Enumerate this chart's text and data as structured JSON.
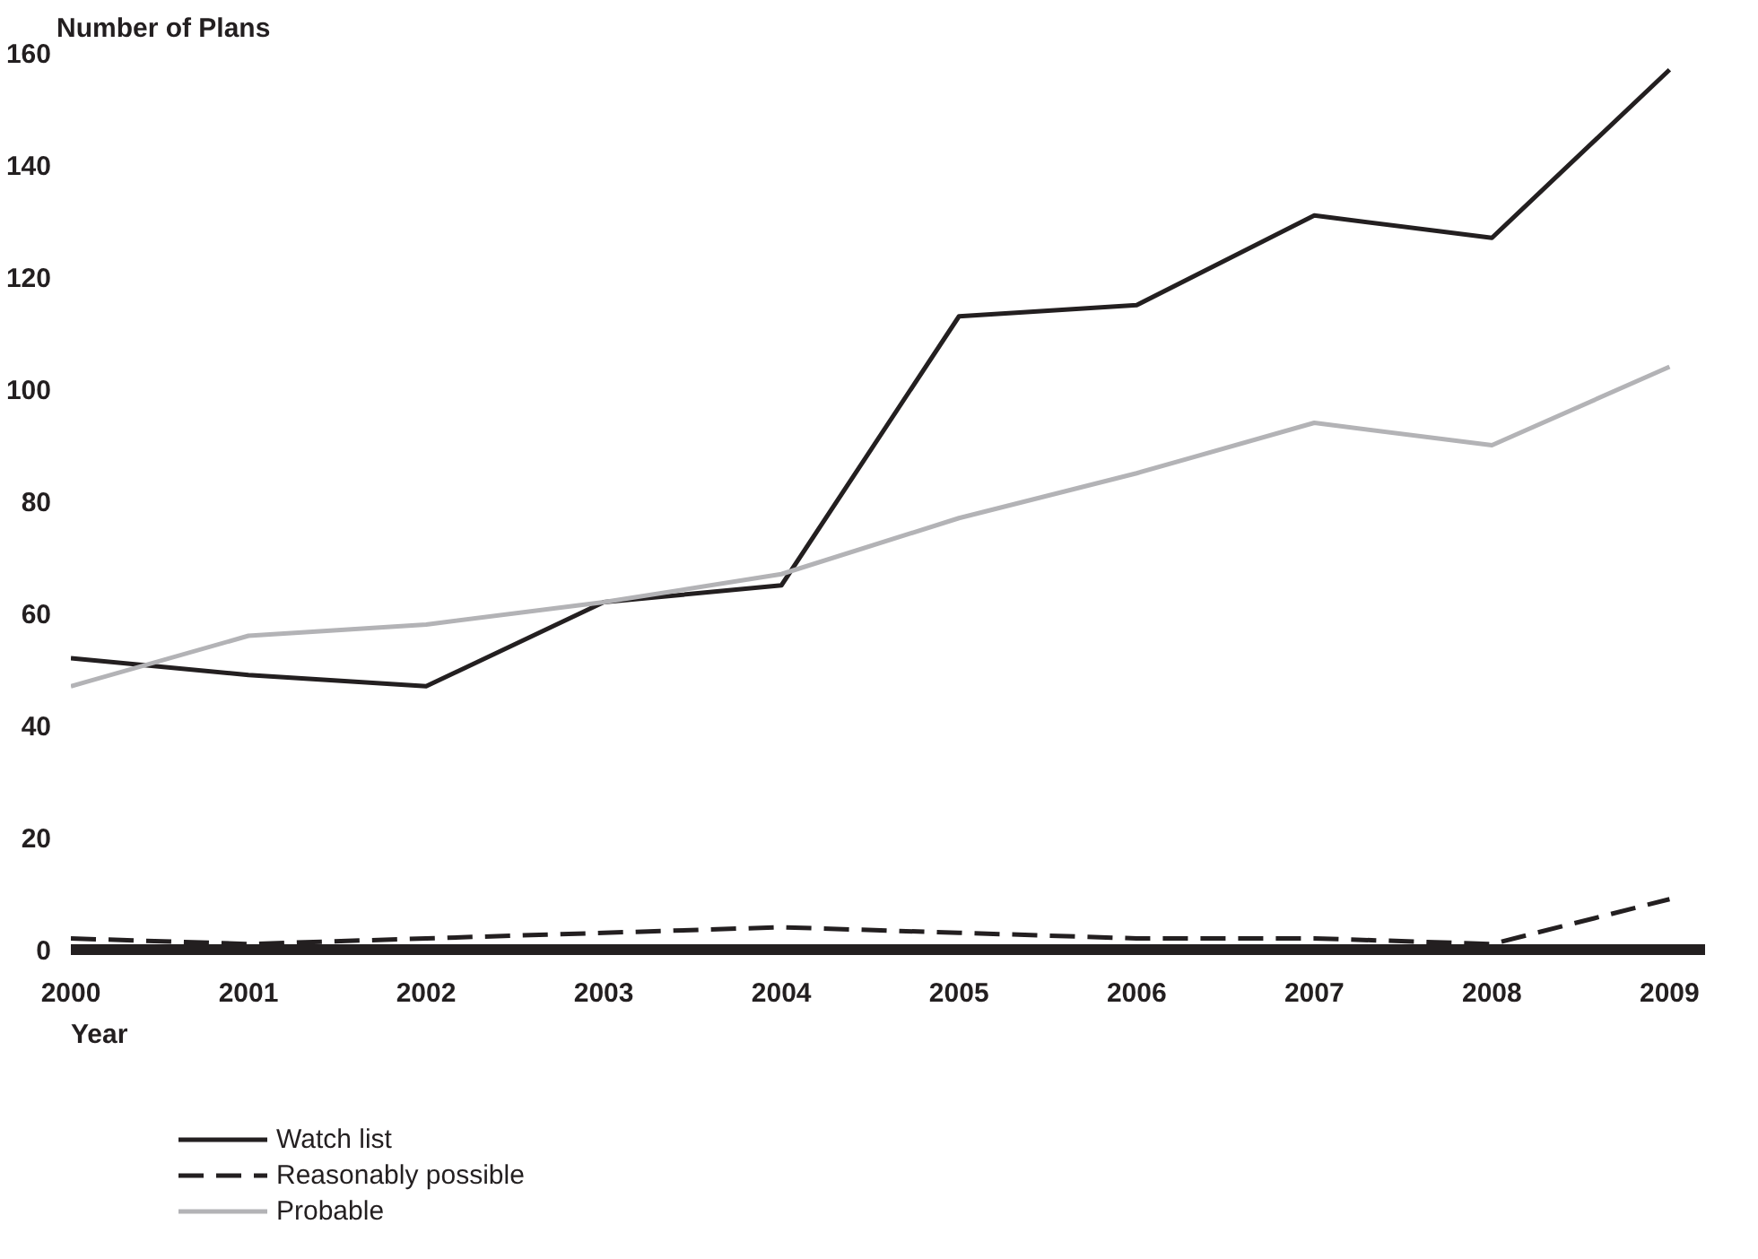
{
  "chart_data": {
    "type": "line",
    "ylabel": "Number of Plans",
    "xlabel": "Year",
    "x": [
      2000,
      2001,
      2002,
      2003,
      2004,
      2005,
      2006,
      2007,
      2008,
      2009
    ],
    "series": [
      {
        "name": "Watch list",
        "color": "#231f20",
        "line_style": "solid",
        "values": [
          52,
          49,
          47,
          62,
          65,
          113,
          115,
          131,
          127,
          157
        ]
      },
      {
        "name": "Reasonably possible",
        "color": "#231f20",
        "line_style": "dashed",
        "values": [
          2,
          1,
          2,
          3,
          4,
          3,
          2,
          2,
          1,
          9
        ]
      },
      {
        "name": "Probable",
        "color": "#b3b3b6",
        "line_style": "solid",
        "values": [
          47,
          56,
          58,
          62,
          67,
          77,
          85,
          94,
          90,
          104
        ]
      }
    ],
    "xlim": [
      2000,
      2009.2
    ],
    "xticks": [
      2000,
      2001,
      2002,
      2003,
      2004,
      2005,
      2006,
      2007,
      2008,
      2009
    ],
    "ylim": [
      0,
      160
    ],
    "yticks": [
      0,
      20,
      40,
      60,
      80,
      100,
      120,
      140,
      160
    ],
    "grid": false,
    "legend": "bottom left",
    "marker": "none"
  }
}
